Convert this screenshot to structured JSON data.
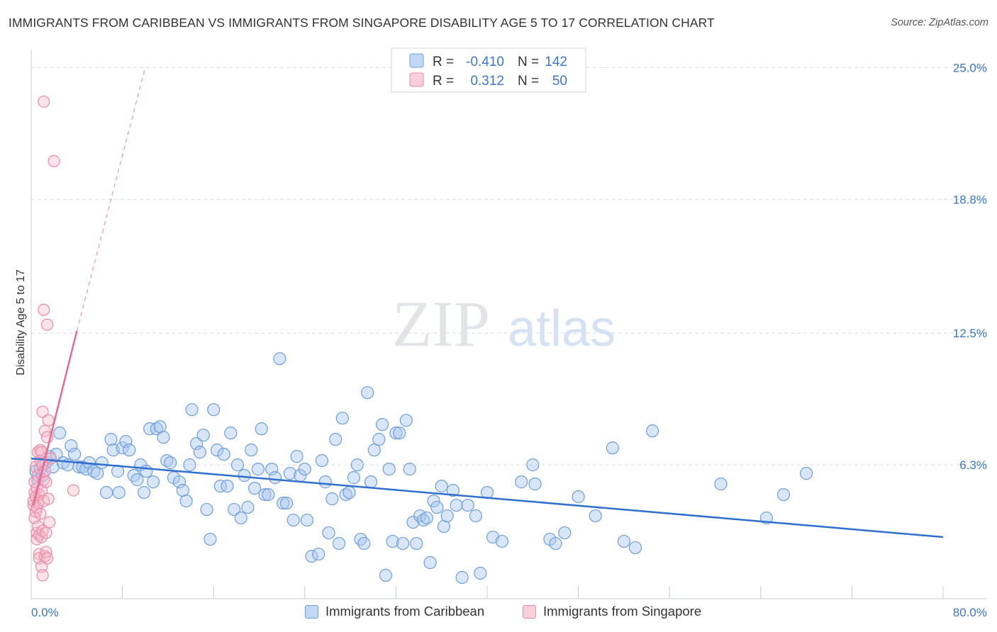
{
  "title": "IMMIGRANTS FROM CARIBBEAN VS IMMIGRANTS FROM SINGAPORE DISABILITY AGE 5 TO 17 CORRELATION CHART",
  "source": "Source: ZipAtlas.com",
  "watermark": {
    "zip": "ZIP",
    "atlas": "atlas"
  },
  "colors": {
    "caribbean_fill": "#a9c8f0",
    "caribbean_stroke": "#6f9fdb",
    "caribbean_line": "#2f6fcf",
    "singapore_fill": "#f6b9cb",
    "singapore_stroke": "#ea8aa8",
    "singapore_line": "#e46a93",
    "value_blue": "#3a78c9",
    "grid": "#d9dce3"
  },
  "legend_top": {
    "rows": [
      {
        "r_label": "R =",
        "r_value": "-0.410",
        "n_label": "N =",
        "n_value": "142"
      },
      {
        "r_label": "R =",
        "r_value": "0.312",
        "n_label": "N =",
        "n_value": "50"
      }
    ]
  },
  "legend_bottom": {
    "caribbean": "Immigrants from Caribbean",
    "singapore": "Immigrants from Singapore"
  },
  "chart_data": {
    "type": "scatter",
    "title": "IMMIGRANTS FROM CARIBBEAN VS IMMIGRANTS FROM SINGAPORE DISABILITY AGE 5 TO 17 CORRELATION CHART",
    "xlabel": "",
    "ylabel": "Disability Age 5 to 17",
    "xlim": [
      0,
      80
    ],
    "ylim": [
      0,
      25.5
    ],
    "x_tick_labels": [
      "0.0%",
      "80.0%"
    ],
    "y_tick_labels": [
      "6.3%",
      "12.5%",
      "18.8%",
      "25.0%"
    ],
    "y_ticks": [
      6.3,
      12.5,
      18.8,
      25.0
    ],
    "x_minor_ticks": [
      0,
      8,
      16,
      24,
      32,
      40,
      48,
      56,
      64,
      72,
      80
    ],
    "grid": true,
    "series": [
      {
        "name": "Immigrants from Caribbean",
        "R": -0.41,
        "N": 142,
        "trend": {
          "x": [
            0,
            80
          ],
          "y": [
            6.6,
            2.9
          ]
        },
        "points": [
          [
            0.4,
            6.0
          ],
          [
            0.6,
            5.6
          ],
          [
            0.8,
            6.1
          ],
          [
            1.0,
            5.8
          ],
          [
            1.3,
            6.4
          ],
          [
            1.6,
            6.7
          ],
          [
            1.9,
            6.2
          ],
          [
            2.2,
            6.8
          ],
          [
            2.5,
            7.8
          ],
          [
            2.8,
            6.4
          ],
          [
            3.2,
            6.3
          ],
          [
            3.5,
            7.2
          ],
          [
            3.8,
            6.8
          ],
          [
            4.2,
            6.2
          ],
          [
            4.5,
            6.2
          ],
          [
            4.8,
            6.1
          ],
          [
            5.1,
            6.4
          ],
          [
            5.5,
            6.0
          ],
          [
            5.8,
            5.9
          ],
          [
            6.2,
            6.4
          ],
          [
            6.6,
            5.0
          ],
          [
            7.0,
            7.5
          ],
          [
            7.2,
            7.0
          ],
          [
            7.6,
            6.0
          ],
          [
            7.7,
            5.0
          ],
          [
            8.0,
            7.1
          ],
          [
            8.3,
            7.4
          ],
          [
            8.6,
            7.0
          ],
          [
            9.0,
            5.8
          ],
          [
            9.3,
            5.6
          ],
          [
            9.6,
            6.3
          ],
          [
            9.9,
            5.0
          ],
          [
            10.1,
            6.0
          ],
          [
            10.4,
            8.0
          ],
          [
            10.7,
            5.5
          ],
          [
            11.0,
            8.0
          ],
          [
            11.3,
            8.1
          ],
          [
            11.6,
            7.6
          ],
          [
            11.9,
            6.5
          ],
          [
            12.2,
            6.4
          ],
          [
            12.5,
            5.7
          ],
          [
            13.0,
            5.5
          ],
          [
            13.3,
            5.1
          ],
          [
            13.6,
            4.6
          ],
          [
            13.9,
            6.3
          ],
          [
            14.1,
            8.9
          ],
          [
            14.5,
            7.3
          ],
          [
            14.8,
            6.9
          ],
          [
            15.1,
            7.7
          ],
          [
            15.4,
            4.2
          ],
          [
            15.7,
            2.8
          ],
          [
            16.0,
            8.9
          ],
          [
            16.3,
            7.0
          ],
          [
            16.6,
            5.3
          ],
          [
            16.9,
            6.8
          ],
          [
            17.2,
            5.3
          ],
          [
            17.5,
            7.8
          ],
          [
            17.8,
            4.2
          ],
          [
            18.1,
            6.3
          ],
          [
            18.4,
            3.8
          ],
          [
            18.7,
            5.8
          ],
          [
            19.0,
            4.3
          ],
          [
            19.3,
            7.0
          ],
          [
            19.6,
            5.2
          ],
          [
            19.9,
            6.1
          ],
          [
            20.2,
            8.0
          ],
          [
            20.5,
            4.9
          ],
          [
            20.8,
            4.9
          ],
          [
            21.1,
            6.1
          ],
          [
            21.4,
            5.7
          ],
          [
            21.8,
            11.3
          ],
          [
            22.1,
            4.5
          ],
          [
            22.4,
            4.5
          ],
          [
            22.7,
            5.9
          ],
          [
            23.0,
            3.7
          ],
          [
            23.3,
            6.7
          ],
          [
            23.6,
            5.8
          ],
          [
            24.0,
            6.1
          ],
          [
            24.2,
            3.7
          ],
          [
            24.6,
            2.0
          ],
          [
            25.2,
            2.1
          ],
          [
            25.5,
            6.5
          ],
          [
            25.8,
            5.5
          ],
          [
            26.1,
            3.1
          ],
          [
            26.4,
            4.7
          ],
          [
            26.7,
            7.5
          ],
          [
            27.0,
            2.6
          ],
          [
            27.3,
            8.5
          ],
          [
            27.6,
            4.9
          ],
          [
            27.9,
            5.0
          ],
          [
            28.3,
            5.7
          ],
          [
            28.6,
            6.3
          ],
          [
            28.9,
            2.8
          ],
          [
            29.2,
            2.6
          ],
          [
            29.5,
            9.7
          ],
          [
            29.8,
            5.5
          ],
          [
            30.1,
            7.0
          ],
          [
            30.5,
            7.5
          ],
          [
            30.8,
            8.2
          ],
          [
            31.1,
            1.1
          ],
          [
            31.4,
            6.1
          ],
          [
            31.7,
            2.7
          ],
          [
            32.0,
            7.8
          ],
          [
            32.3,
            7.8
          ],
          [
            32.6,
            2.6
          ],
          [
            32.9,
            8.4
          ],
          [
            33.2,
            6.1
          ],
          [
            33.5,
            3.6
          ],
          [
            33.8,
            2.6
          ],
          [
            34.1,
            3.9
          ],
          [
            34.4,
            3.7
          ],
          [
            34.7,
            3.8
          ],
          [
            35.0,
            1.7
          ],
          [
            35.3,
            4.6
          ],
          [
            35.6,
            4.3
          ],
          [
            36.0,
            5.3
          ],
          [
            36.2,
            3.4
          ],
          [
            36.5,
            3.9
          ],
          [
            37.0,
            5.1
          ],
          [
            37.3,
            4.4
          ],
          [
            37.8,
            1.0
          ],
          [
            38.3,
            4.4
          ],
          [
            39.0,
            3.9
          ],
          [
            39.4,
            1.2
          ],
          [
            40.0,
            5.0
          ],
          [
            40.5,
            2.9
          ],
          [
            41.3,
            2.7
          ],
          [
            43.0,
            5.5
          ],
          [
            44.0,
            6.3
          ],
          [
            44.2,
            5.4
          ],
          [
            45.5,
            2.8
          ],
          [
            46.0,
            2.6
          ],
          [
            46.8,
            3.1
          ],
          [
            48.0,
            4.8
          ],
          [
            49.5,
            3.9
          ],
          [
            51.0,
            7.1
          ],
          [
            52.0,
            2.7
          ],
          [
            53.0,
            2.4
          ],
          [
            54.5,
            7.9
          ],
          [
            60.5,
            5.4
          ],
          [
            64.5,
            3.8
          ],
          [
            66.0,
            4.9
          ],
          [
            68.0,
            5.9
          ]
        ]
      },
      {
        "name": "Immigrants from Singapore",
        "R": 0.312,
        "N": 50,
        "trend": {
          "x": [
            0.2,
            4.0
          ],
          "y": [
            4.4,
            12.6
          ]
        },
        "trend_extrapolated": {
          "x": [
            4.0,
            10.0
          ],
          "y": [
            12.6,
            25.0
          ]
        },
        "points": [
          [
            0.2,
            4.4
          ],
          [
            0.2,
            4.6
          ],
          [
            0.3,
            5.0
          ],
          [
            0.3,
            3.8
          ],
          [
            0.3,
            5.5
          ],
          [
            0.4,
            4.1
          ],
          [
            0.4,
            6.2
          ],
          [
            0.4,
            4.8
          ],
          [
            0.5,
            3.1
          ],
          [
            0.5,
            4.3
          ],
          [
            0.5,
            5.2
          ],
          [
            0.5,
            2.8
          ],
          [
            0.6,
            3.4
          ],
          [
            0.6,
            4.5
          ],
          [
            0.6,
            5.8
          ],
          [
            0.6,
            6.9
          ],
          [
            0.7,
            2.1
          ],
          [
            0.7,
            4.9
          ],
          [
            0.7,
            3.0
          ],
          [
            0.7,
            1.9
          ],
          [
            0.8,
            6.5
          ],
          [
            0.8,
            7.0
          ],
          [
            0.8,
            4.0
          ],
          [
            0.9,
            1.5
          ],
          [
            0.9,
            2.9
          ],
          [
            0.9,
            5.1
          ],
          [
            1.0,
            1.1
          ],
          [
            1.0,
            3.2
          ],
          [
            1.0,
            6.3
          ],
          [
            1.0,
            8.8
          ],
          [
            1.1,
            4.6
          ],
          [
            1.1,
            5.6
          ],
          [
            1.2,
            2.0
          ],
          [
            1.2,
            6.0
          ],
          [
            1.2,
            7.9
          ],
          [
            1.3,
            2.2
          ],
          [
            1.3,
            3.1
          ],
          [
            1.3,
            5.5
          ],
          [
            1.4,
            1.9
          ],
          [
            1.4,
            7.6
          ],
          [
            1.5,
            4.7
          ],
          [
            1.5,
            8.4
          ],
          [
            1.6,
            3.6
          ],
          [
            1.7,
            6.6
          ],
          [
            1.1,
            23.4
          ],
          [
            2.0,
            20.6
          ],
          [
            1.1,
            13.6
          ],
          [
            1.4,
            12.9
          ],
          [
            3.7,
            5.1
          ],
          [
            0.9,
            6.9
          ]
        ]
      }
    ]
  }
}
